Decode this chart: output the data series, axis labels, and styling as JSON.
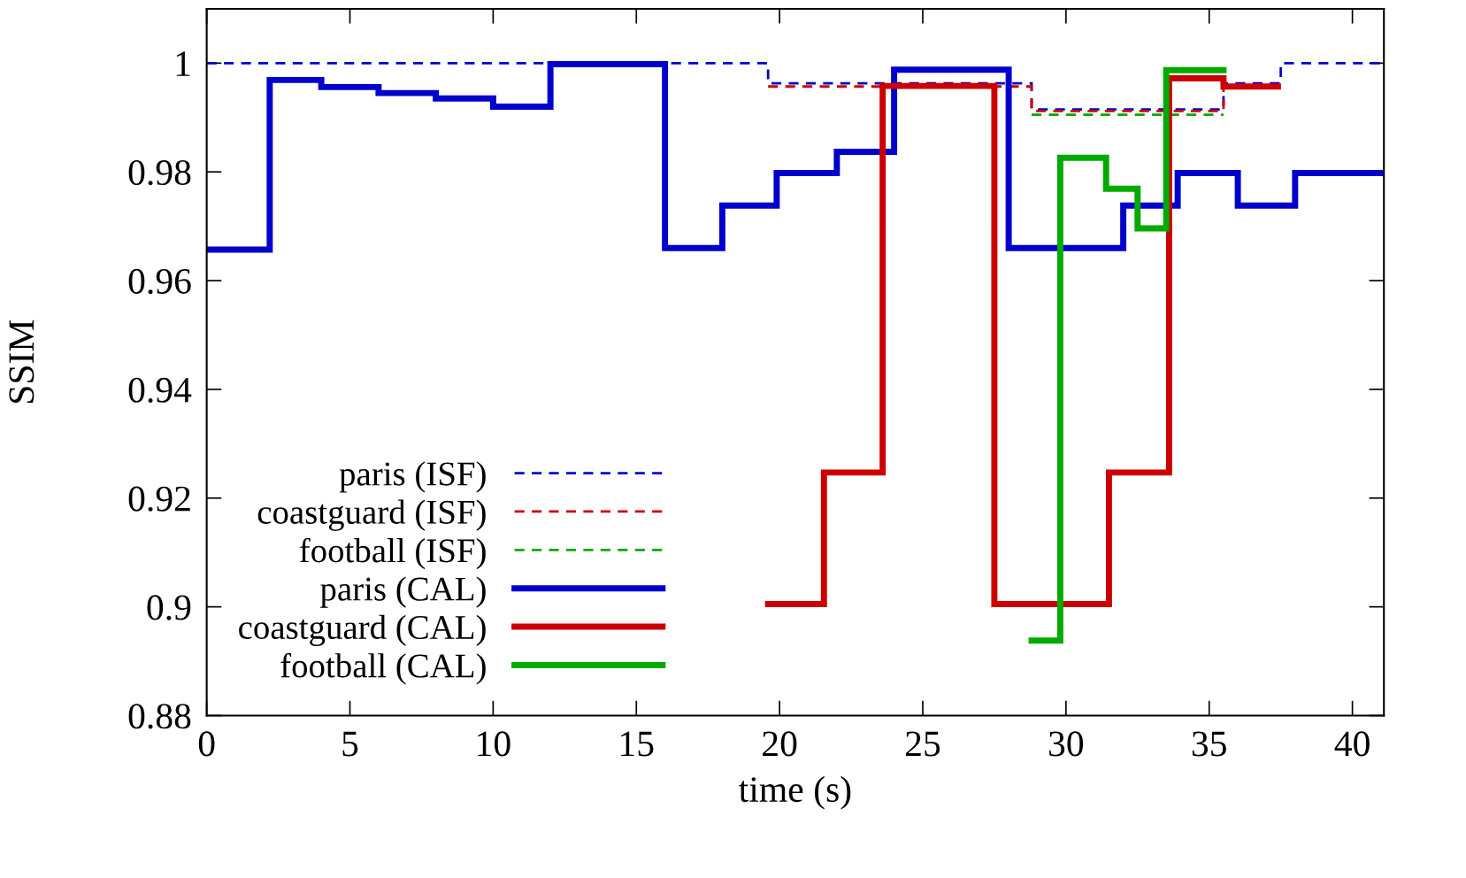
{
  "chart_data": {
    "type": "step",
    "xlabel": "time (s)",
    "ylabel": "SSIM",
    "xlim": [
      0,
      41.1
    ],
    "ylim": [
      0.88,
      1.01
    ],
    "xticks": [
      0,
      5,
      10,
      15,
      20,
      25,
      30,
      35,
      40
    ],
    "yticks": [
      {
        "value": 0.88,
        "label": "0.88"
      },
      {
        "value": 0.9,
        "label": "0.9"
      },
      {
        "value": 0.92,
        "label": "0.92"
      },
      {
        "value": 0.94,
        "label": "0.94"
      },
      {
        "value": 0.96,
        "label": "0.96"
      },
      {
        "value": 0.98,
        "label": "0.98"
      },
      {
        "value": 1,
        "label": "1"
      }
    ],
    "grid": false,
    "legend": "bottom left",
    "marker": "none",
    "series": [
      {
        "name": "paris (ISF)",
        "color": "#0000cc",
        "line_style": "dashed",
        "x": [
          0,
          19.6,
          28.8,
          35.5,
          37.5,
          41.1
        ],
        "values": [
          1.0,
          0.9963,
          0.9915,
          0.9963,
          1.0,
          1.0
        ]
      },
      {
        "name": "coastguard (ISF)",
        "color": "#cc0000",
        "line_style": "dashed",
        "x": [
          19.6,
          28.8,
          35.5,
          37.5
        ],
        "values": [
          0.9957,
          0.9912,
          0.9957,
          0.9957
        ]
      },
      {
        "name": "football (ISF)",
        "color": "#00aa00",
        "line_style": "dashed",
        "x": [
          28.8,
          35.5
        ],
        "values": [
          0.9905,
          0.9905
        ]
      },
      {
        "name": "paris (CAL)",
        "color": "#0000cc",
        "line_style": "solid",
        "x": [
          0,
          2.2,
          4,
          6,
          8,
          10,
          12,
          16,
          18,
          19.9,
          22,
          24,
          28,
          32,
          33.9,
          36,
          38,
          41.1
        ],
        "values": [
          0.9657,
          0.9969,
          0.9956,
          0.9945,
          0.9935,
          0.992,
          0.9998,
          0.966,
          0.9738,
          0.9798,
          0.9837,
          0.9988,
          0.966,
          0.9738,
          0.9798,
          0.9738,
          0.9798,
          0.9798
        ]
      },
      {
        "name": "coastguard (CAL)",
        "color": "#cc0000",
        "line_style": "solid",
        "x": [
          19.6,
          21.55,
          23.6,
          27.5,
          31.5,
          33.6,
          35.5,
          37.4
        ],
        "values": [
          0.9005,
          0.9247,
          0.9958,
          0.9005,
          0.9247,
          0.9972,
          0.9957,
          0.9957
        ]
      },
      {
        "name": "football (CAL)",
        "color": "#00aa00",
        "line_style": "solid",
        "x": [
          28.8,
          29.8,
          31.4,
          32.5,
          33.5,
          35.5
        ],
        "values": [
          0.8938,
          0.9826,
          0.9769,
          0.9696,
          0.9987,
          0.9987
        ]
      }
    ]
  }
}
